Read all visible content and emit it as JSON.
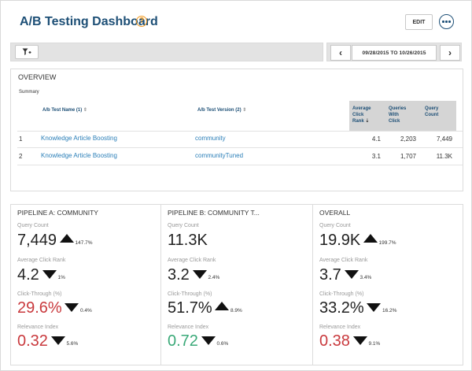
{
  "header": {
    "title": "A/B Testing Dashboard",
    "help_glyph": "?",
    "edit_label": "EDIT"
  },
  "toolbar": {
    "date_range": "09/28/2015 TO 10/26/2015",
    "prev": "‹",
    "next": "›"
  },
  "overview": {
    "title": "OVERVIEW",
    "summary": "Summary",
    "columns": {
      "test_name": "A/b Test Name (1)",
      "test_version": "A/b Test Version (2)",
      "avg_click_rank": [
        "Average",
        "Click",
        "Rank"
      ],
      "queries_with_click": [
        "Queries",
        "With",
        "Click"
      ],
      "query_count": [
        "Query",
        "Count"
      ]
    },
    "rows": [
      {
        "index": "1",
        "name": "Knowledge Article Boosting",
        "version": "community",
        "avg_rank": "4.1",
        "queries_click": "2,203",
        "query_count": "7,449"
      },
      {
        "index": "2",
        "name": "Knowledge Article Boosting",
        "version": "communityTuned",
        "avg_rank": "3.1",
        "queries_click": "1,707",
        "query_count": "11.3K"
      }
    ]
  },
  "labels": {
    "query_count": "Query Count",
    "avg_click_rank": "Average Click Rank",
    "click_through": "Click-Through (%)",
    "relevance_index": "Relevance Index"
  },
  "pipelines": [
    {
      "title": "PIPELINE A: COMMUNITY",
      "query_count": "7,449",
      "query_count_pct": "147.7%",
      "query_count_dir": "up",
      "avg_rank": "4.2",
      "avg_rank_pct": "1%",
      "avg_rank_dir": "down",
      "click_through": "29.6%",
      "click_through_pct": "0.4%",
      "click_through_dir": "down",
      "click_through_color": "#c9393d",
      "relevance": "0.32",
      "relevance_pct": "5.6%",
      "relevance_dir": "down",
      "relevance_color": "#c9393d"
    },
    {
      "title": "PIPELINE B: COMMUNITY T...",
      "query_count": "11.3K",
      "query_count_pct": "",
      "query_count_dir": "",
      "avg_rank": "3.2",
      "avg_rank_pct": "2.4%",
      "avg_rank_dir": "down",
      "click_through": "51.7%",
      "click_through_pct": "8.9%",
      "click_through_dir": "up",
      "click_through_color": "#222222",
      "relevance": "0.72",
      "relevance_pct": "0.6%",
      "relevance_dir": "down",
      "relevance_color": "#3aa978"
    },
    {
      "title": "OVERALL",
      "query_count": "19.9K",
      "query_count_pct": "199.7%",
      "query_count_dir": "up",
      "avg_rank": "3.7",
      "avg_rank_pct": "3.4%",
      "avg_rank_dir": "down",
      "click_through": "33.2%",
      "click_through_pct": "16.2%",
      "click_through_dir": "down",
      "click_through_color": "#222222",
      "relevance": "0.38",
      "relevance_pct": "9.1%",
      "relevance_dir": "down",
      "relevance_color": "#c9393d"
    }
  ]
}
